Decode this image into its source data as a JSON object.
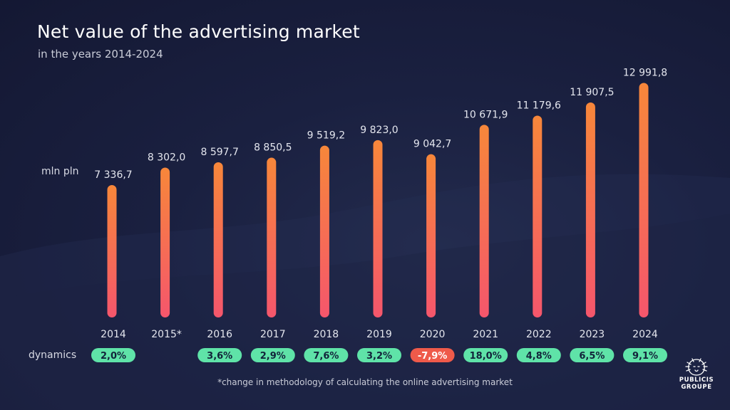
{
  "header": {
    "title": "Net value of the advertising market",
    "subtitle": "in the years 2014-2024"
  },
  "unit_label": "mln pln",
  "dynamics_label": "dynamics",
  "footnote": "*change in methodology of calculating the online advertising market",
  "logo": {
    "line1": "PUBLICIS",
    "line2": "GROUPE",
    "icon": "lion-icon"
  },
  "colors": {
    "bar_top": "#f7873a",
    "bar_bottom": "#f5566c",
    "badge_positive": "#5fe3a8",
    "badge_negative": "#ef5a4a"
  },
  "chart_data": {
    "type": "bar",
    "title": "Net value of the advertising market",
    "subtitle": "in the years 2014-2024",
    "ylabel": "mln pln",
    "categories": [
      "2014",
      "2015*",
      "2016",
      "2017",
      "2018",
      "2019",
      "2020",
      "2021",
      "2022",
      "2023",
      "2024"
    ],
    "values": [
      7336.7,
      8302.0,
      8597.7,
      8850.5,
      9519.2,
      9823.0,
      9042.7,
      10671.9,
      11179.6,
      11907.5,
      12991.8
    ],
    "value_labels": [
      "7 336,7",
      "8 302,0",
      "8 597,7",
      "8 850,5",
      "9 519,2",
      "9 823,0",
      "9 042,7",
      "10 671,9",
      "11 179,6",
      "11 907,5",
      "12 991,8"
    ],
    "dynamics": [
      "2,0%",
      "",
      "3,6%",
      "2,9%",
      "7,6%",
      "3,2%",
      "-7,9%",
      "18,0%",
      "4,8%",
      "6,5%",
      "9,1%"
    ],
    "dynamics_values": [
      2.0,
      null,
      3.6,
      2.9,
      7.6,
      3.2,
      -7.9,
      18.0,
      4.8,
      6.5,
      9.1
    ],
    "ylim": [
      0,
      13000
    ],
    "grid": false,
    "legend": "none"
  }
}
